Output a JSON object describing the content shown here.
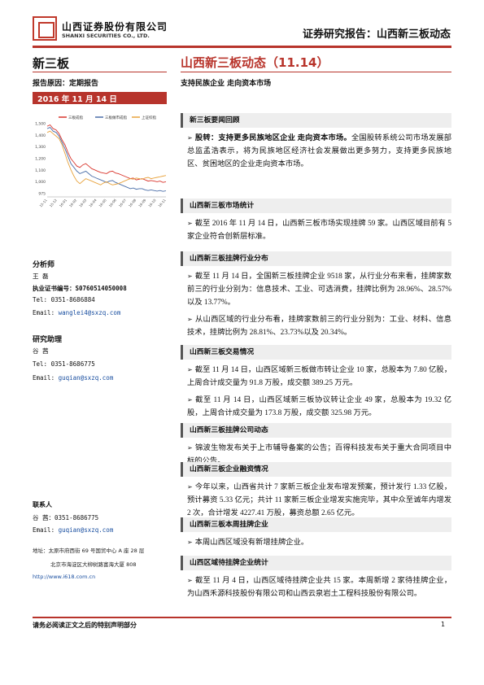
{
  "header": {
    "logo_cn": "山西证券股份有限公司",
    "logo_en": "SHANXI SECURITIES CO., LTD.",
    "report_title": "证券研究报告：山西新三板动态"
  },
  "left": {
    "category": "新三板",
    "reason": "报告原因：定期报告",
    "date": "2016 年 11 月 14 日",
    "analyst_label": "分析师",
    "analyst_name": "王 磊",
    "analyst_cert_label": "执业证书编号：",
    "analyst_cert": "S0760514050008",
    "analyst_tel": "Tel: 0351-8686884",
    "analyst_email_label": "Email:",
    "analyst_email": "wanglei4@sxzq.com",
    "assistant_label": "研究助理",
    "assistant_name": "谷 茜",
    "assistant_tel": "Tel: 0351-8686775",
    "assistant_email_label": "Email:",
    "assistant_email": "guqian@sxzq.com",
    "contact_label": "联系人",
    "contact_name_tel": "谷 茜：0351-8686775",
    "contact_email_label": "Email:",
    "contact_email": "guqian@sxzq.com",
    "address_label": "地址：",
    "address1": "太原市府西街 69 号国贸中心 A 座 28 层",
    "address2": "北京市海淀区大柳树路富海大厦 808",
    "website": "http://www.i618.com.cn"
  },
  "chart_data": {
    "type": "line",
    "legend": [
      "三板成指",
      "三板做市成指",
      "上证综指"
    ],
    "colors": [
      "#d9342b",
      "#4a6ea8",
      "#e8a33d"
    ],
    "yticks": [
      "1,500",
      "1,400",
      "1,300",
      "1,200",
      "1,100",
      "1,000",
      "975"
    ],
    "xticks": [
      "15-11",
      "15-12",
      "16-01",
      "16-02",
      "16-03",
      "16-04",
      "16-05",
      "16-06",
      "16-07",
      "16-08",
      "16-09",
      "16-10",
      "16-11"
    ],
    "ylim": [
      960,
      1520
    ],
    "series": [
      {
        "values": [
          1500,
          1510,
          1480,
          1470,
          1440,
          1390,
          1350,
          1290,
          1240,
          1210,
          1180,
          1170,
          1190,
          1200,
          1180,
          1160,
          1150,
          1140,
          1130,
          1125,
          1120,
          1135,
          1140,
          1125,
          1120,
          1110,
          1100,
          1090,
          1080,
          1085,
          1070,
          1075,
          1080,
          1070,
          1060,
          1065,
          1060,
          1055,
          1060,
          1050,
          1055
        ]
      },
      {
        "values": [
          1480,
          1490,
          1460,
          1450,
          1420,
          1370,
          1320,
          1260,
          1200,
          1170,
          1140,
          1120,
          1130,
          1140,
          1120,
          1100,
          1090,
          1080,
          1070,
          1060,
          1050,
          1060,
          1065,
          1050,
          1040,
          1030,
          1020,
          1010,
          1000,
          1005,
          995,
          1000,
          1000,
          990,
          985,
          990,
          985,
          980,
          985,
          978,
          982
        ]
      },
      {
        "values": [
          1450,
          1460,
          1440,
          1420,
          1400,
          1350,
          1280,
          1210,
          1150,
          1100,
          1060,
          1040,
          1060,
          1080,
          1070,
          1060,
          1050,
          1040,
          1030,
          1045,
          1055,
          1040,
          1030,
          1035,
          1040,
          1050,
          1060,
          1070,
          1080,
          1075,
          1085,
          1080,
          1075,
          1085,
          1090,
          1080,
          1085,
          1090,
          1095,
          1100,
          1105
        ]
      }
    ]
  },
  "main": {
    "title": "山西新三板动态（11.14）",
    "subtitle": "支持民族企业 走向资本市场",
    "sections": [
      {
        "head": "新三板要闻回顾",
        "paras": [
          [
            "股转：支持更多民族地区企业 走向资本市场。",
            "全国股转系统公司市场发展部总监孟浩表示，将为民族地区经济社会发展做出更多努力，支持更多民族地区、贫困地区的企业走向资本市场。"
          ]
        ]
      },
      {
        "head": "山西新三板市场统计",
        "paras": [
          [
            "",
            "截至 2016 年 11 月 14 日，山西新三板市场实现挂牌 59 家。山西区域目前有 5 家企业符合创新层标准。"
          ]
        ]
      },
      {
        "head": "山西新三板挂牌行业分布",
        "paras": [
          [
            "",
            "截至 11 月 14 日，全国新三板挂牌企业 9518 家，从行业分布来看，挂牌家数前三的行业分别为：信息技术、工业、可选消费，挂牌比例为 28.96%、28.57%以及 13.77%。"
          ],
          [
            "",
            "从山西区域的行业分布看，挂牌家数前三的行业分别为：工业、材料、信息技术，挂牌比例为 28.81%、23.73%以及 20.34%。"
          ]
        ]
      },
      {
        "head": "山西新三板交易情况",
        "paras": [
          [
            "",
            "截至 11 月 14 日，山西区域新三板做市转让企业 10 家，总股本为 7.80 亿股，上周合计成交量为 91.8 万股，成交额 389.25 万元。"
          ],
          [
            "",
            "截至 11 月 14 日，山西区域新三板协议转让企业 49 家，总股本为 19.32 亿股，上周合计成交量为 173.8 万股，成交额 325.98 万元。"
          ]
        ]
      },
      {
        "head": "山西新三板挂牌公司动态",
        "paras": [
          [
            "",
            "锦波生物发布关于上市辅导备案的公告；百得科技发布关于重大合同项目中标的公告。"
          ]
        ]
      },
      {
        "head": "山西新三板企业融资情况",
        "paras": [
          [
            "",
            "今年以来，山西省共计 7 家新三板企业发布增发预案，预计发行 1.33 亿股，预计募资 5.33 亿元；共计 11 家新三板企业增发实施完毕，其中众至诚年内增发 2 次，合计增发 4227.41 万股，募资总额 2.65 亿元。"
          ]
        ]
      },
      {
        "head": "山西新三板本周挂牌企业",
        "paras": [
          [
            "",
            "本周山西区域没有新增挂牌企业。"
          ]
        ]
      },
      {
        "head": "山西区域待挂牌企业统计",
        "paras": [
          [
            "",
            "截至 11 月 4 日，山西区域待挂牌企业共 15 家。本周新增 2 家待挂牌企业，为山西禾源科技股份有限公司和山西云泉岩土工程科技股份有限公司。"
          ]
        ]
      }
    ]
  },
  "footer": {
    "disclaimer": "请务必阅读正文之后的特别声明部分",
    "page": "1"
  }
}
